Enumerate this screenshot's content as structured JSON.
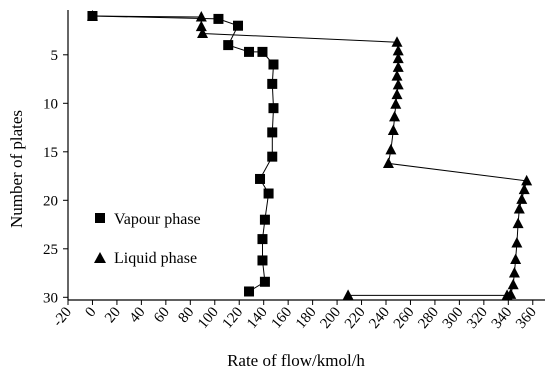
{
  "chart_data": {
    "type": "scatter",
    "xlabel": "Rate of flow/kmol/h",
    "ylabel": "Number of plates",
    "xlim": [
      -20,
      370
    ],
    "ylim": [
      30,
      0
    ],
    "y_inverted": true,
    "x_ticks": [
      "-20",
      "0",
      "20",
      "40",
      "60",
      "80",
      "100",
      "120",
      "140",
      "160",
      "180",
      "200",
      "220",
      "240",
      "260",
      "280",
      "300",
      "320",
      "340",
      "360"
    ],
    "y_ticks": [
      "5",
      "10",
      "15",
      "20",
      "25",
      "30"
    ],
    "legend_position": "bottom-left",
    "series": [
      {
        "name": "Vapour phase",
        "marker": "square",
        "x": [
          0,
          103,
          119,
          111,
          128,
          139,
          148,
          147,
          148,
          147,
          147,
          137,
          144,
          141,
          139,
          139,
          141,
          128
        ],
        "y": [
          1,
          1.3,
          2,
          4,
          4.7,
          4.7,
          6,
          8,
          10.5,
          13,
          15.5,
          17.8,
          19.3,
          22,
          24,
          26.2,
          28.4,
          29.4
        ]
      },
      {
        "name": "Liquid phase",
        "marker": "triangle",
        "x": [
          0,
          89,
          89,
          90,
          249,
          250,
          250,
          250,
          249,
          250,
          249,
          248,
          247,
          246,
          244,
          242,
          355,
          353,
          351,
          349,
          348,
          347,
          346,
          345,
          344,
          342,
          339,
          209
        ],
        "y": [
          1,
          1.1,
          2.1,
          2.8,
          3.7,
          4.6,
          5.4,
          6.3,
          7.2,
          8.1,
          9.1,
          10.1,
          11.4,
          12.8,
          14.8,
          16.2,
          18,
          18.9,
          19.9,
          20.9,
          22.4,
          24.4,
          26.1,
          27.5,
          28.7,
          29.7,
          29.8,
          29.8
        ]
      }
    ]
  }
}
